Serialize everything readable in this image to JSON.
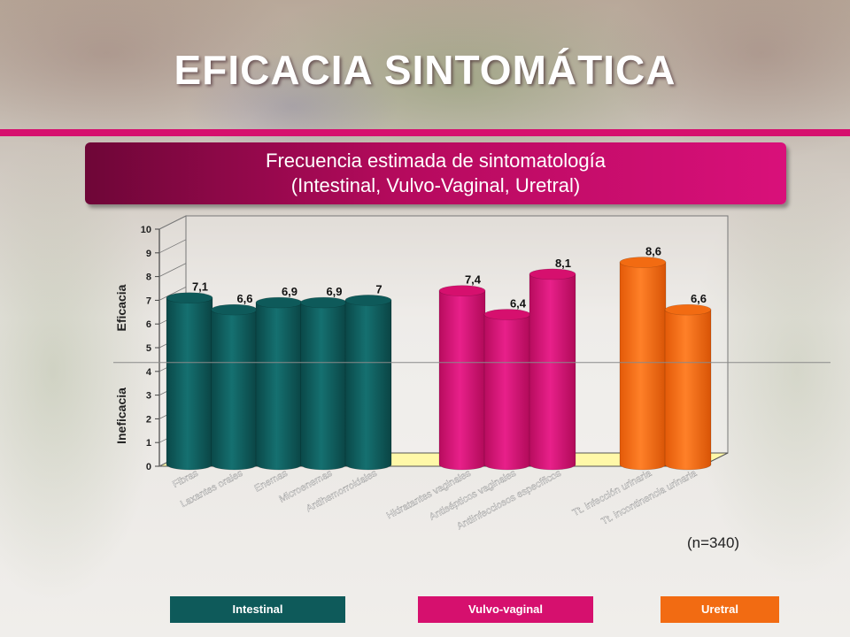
{
  "slide": {
    "title": "EFICACIA SINTOMÁTICA",
    "subtitle_line1": "Frecuencia estimada de sintomatología",
    "subtitle_line2": "(Intestinal, Vulvo-Vaginal, Uretral)",
    "sample_size": "(n=340)"
  },
  "colors": {
    "intestinal": "#0e5a5a",
    "vulvo_vaginal": "#d6106e",
    "uretral": "#f26b12",
    "title_rule": "#d6106e",
    "floor": "#fff8a8"
  },
  "legend": [
    {
      "label": "Intestinal",
      "color": "#0e5a5a"
    },
    {
      "label": "Vulvo-vaginal",
      "color": "#d6106e"
    },
    {
      "label": "Uretral",
      "color": "#f26b12"
    }
  ],
  "chart_data": {
    "type": "bar",
    "title": "",
    "ylim": [
      0,
      10
    ],
    "yticks": [
      0,
      1,
      2,
      3,
      4,
      5,
      6,
      7,
      8,
      9,
      10
    ],
    "threshold": 4.3,
    "zone_labels": {
      "above": "Eficacia",
      "below": "Ineficacia"
    },
    "grid": false,
    "legend_position": "bottom",
    "groups": [
      {
        "name": "Intestinal",
        "color": "#0e5a5a",
        "categories": [
          "Fibras",
          "Laxantes orales",
          "Enemas",
          "Microenemas",
          "Antihemorroidales"
        ],
        "values": [
          7.1,
          6.6,
          6.9,
          6.9,
          7
        ],
        "labels": [
          "7,1",
          "6,6",
          "6,9",
          "6,9",
          "7"
        ]
      },
      {
        "name": "Vulvo-vaginal",
        "color": "#d6106e",
        "categories": [
          "Hidratantes vaginales",
          "Antisépticos vaginales",
          "Antiinfecciosos específicos"
        ],
        "values": [
          7.4,
          6.4,
          8.1
        ],
        "labels": [
          "7,4",
          "6,4",
          "8,1"
        ]
      },
      {
        "name": "Uretral",
        "color": "#f26b12",
        "categories": [
          "Tt. infección urinaria",
          "Tt. incontinencia urinaria"
        ],
        "values": [
          8.6,
          6.6
        ],
        "labels": [
          "8,6",
          "6,6"
        ]
      }
    ]
  }
}
